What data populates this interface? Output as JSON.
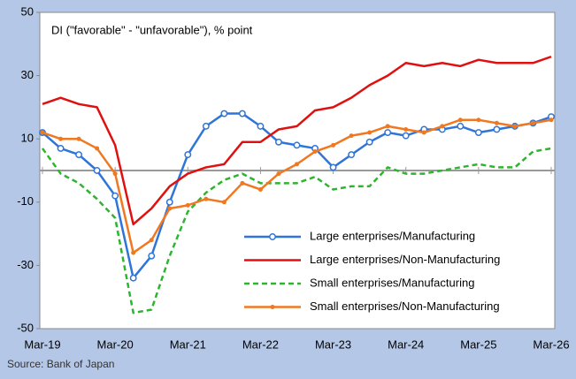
{
  "chart_data": {
    "type": "line",
    "annotation": "DI (\"favorable\" - \"unfavorable\"), % point",
    "source": "Source: Bank of Japan",
    "categories": [
      "Mar-19",
      null,
      null,
      null,
      "Mar-20",
      null,
      null,
      null,
      "Mar-21",
      null,
      null,
      null,
      "Mar-22",
      null,
      null,
      null,
      "Mar-23",
      null,
      null,
      null,
      "Mar-24",
      null,
      null,
      null,
      "Mar-25",
      null,
      null,
      null,
      "Mar-26"
    ],
    "ylim": [
      -50,
      50
    ],
    "yticks": [
      -50,
      -30,
      -10,
      10,
      30,
      50
    ],
    "grid": false,
    "legend": "lower right",
    "series": [
      {
        "name": "Large enterprises/Manufacturing",
        "color": "#2f75d8",
        "marker": "circle",
        "dash": false,
        "values": [
          12,
          7,
          5,
          0,
          -8,
          -34,
          -27,
          -10,
          5,
          14,
          18,
          18,
          14,
          9,
          8,
          7,
          1,
          5,
          9,
          12,
          11,
          13,
          13,
          14,
          12,
          13,
          14,
          15,
          17
        ]
      },
      {
        "name": "Large enterprises/Non-Manufacturing",
        "color": "#e01010",
        "marker": "none",
        "dash": false,
        "values": [
          21,
          23,
          21,
          20,
          8,
          -17,
          -12,
          -5,
          -1,
          1,
          2,
          9,
          9,
          13,
          14,
          19,
          20,
          23,
          27,
          30,
          34,
          33,
          34,
          33,
          35,
          34,
          34,
          34,
          36
        ]
      },
      {
        "name": "Small enterprises/Manufacturing",
        "color": "#2db52d",
        "marker": "none",
        "dash": true,
        "values": [
          7,
          -1,
          -4,
          -9,
          -15,
          -45,
          -44,
          -27,
          -13,
          -7,
          -3,
          -1,
          -4,
          -4,
          -4,
          -2,
          -6,
          -5,
          -5,
          1,
          -1,
          -1,
          0,
          1,
          2,
          1,
          1,
          6,
          7
        ]
      },
      {
        "name": "Small enterprises/Non-Manufacturing",
        "color": "#f07820",
        "marker": "dot",
        "dash": false,
        "values": [
          12,
          10,
          10,
          7,
          -1,
          -26,
          -22,
          -12,
          -11,
          -9,
          -10,
          -4,
          -6,
          -1,
          2,
          6,
          8,
          11,
          12,
          14,
          13,
          12,
          14,
          16,
          16,
          15,
          14,
          15,
          16
        ]
      }
    ]
  }
}
